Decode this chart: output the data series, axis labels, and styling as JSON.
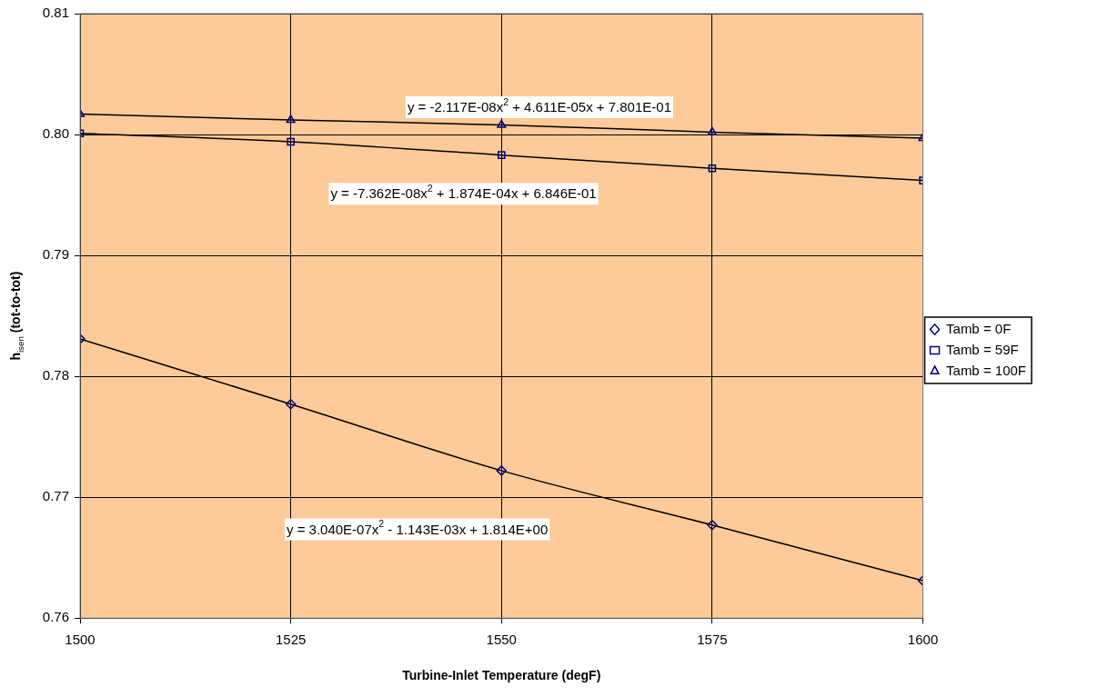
{
  "chart_data": {
    "type": "scatter",
    "xlabel": "Turbine-Inlet Temperature (degF)",
    "ylabel": "h$_{isen}$ (tot-to-tot)",
    "x": [
      1500,
      1525,
      1550,
      1575,
      1600
    ],
    "series": [
      {
        "name": "Tamb = 0F",
        "color": "#000080",
        "marker": "diamond",
        "values": [
          0.7831,
          0.7777,
          0.7722,
          0.7677,
          0.7631
        ]
      },
      {
        "name": "Tamb = 59F",
        "color": "#000080",
        "marker": "square",
        "values": [
          0.8001,
          0.7994,
          0.7983,
          0.7972,
          0.7962
        ]
      },
      {
        "name": "Tamb = 100F",
        "color": "#000080",
        "marker": "triangle",
        "values": [
          0.8017,
          0.8012,
          0.8008,
          0.8002,
          0.7997
        ]
      },
      {
        "type": "line",
        "color": "#000000",
        "marker": "none",
        "values": [
          0.7831,
          0.7777,
          0.7722,
          0.7677,
          0.7631
        ]
      },
      {
        "type": "line",
        "color": "#000000",
        "marker": "none",
        "values": [
          0.8001,
          0.7994,
          0.7983,
          0.7972,
          0.7962
        ]
      },
      {
        "type": "line",
        "color": "#000000",
        "marker": "none",
        "values": [
          0.8017,
          0.8012,
          0.8008,
          0.8002,
          0.7997
        ]
      }
    ],
    "xlim": [
      1500,
      1600
    ],
    "xticks": [
      1500,
      1525,
      1550,
      1575,
      1600
    ],
    "ylim": [
      0.76,
      0.81
    ],
    "yticks": [
      0.76,
      0.77,
      0.78,
      0.79,
      {
        "value": 0.8,
        "label": "0.80"
      },
      0.81
    ],
    "grid": true,
    "legend": "right",
    "annotations": [
      "y = -2.117E-08x$^{2}$ + 4.611E-05x + 7.801E-01",
      "y = -7.362E-08x$^{2}$ + 1.874E-04x + 6.846E-01",
      "y = 3.040E-07x$^{2}$ - 1.143E-03x + 1.814E+00"
    ]
  }
}
